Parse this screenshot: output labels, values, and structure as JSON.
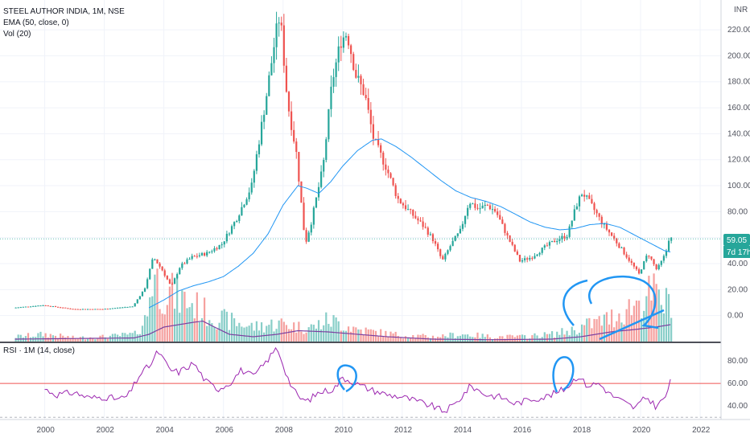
{
  "legend": {
    "symbol": "STEEL AUTHOR INDIA, 1M, NSE",
    "ema": "EMA (50, close, 0)",
    "vol": "Vol (20)",
    "rsi": "RSI · 1M (14, close)"
  },
  "price_axis": {
    "currency": "INR",
    "ticks": [
      "220.00",
      "200.00",
      "180.00",
      "160.00",
      "140.00",
      "120.00",
      "100.00",
      "80.00",
      "60.00",
      "40.00",
      "20.00",
      "0.00"
    ],
    "last_price": "59.05",
    "countdown": "7d 17h"
  },
  "rsi_axis": {
    "ticks": [
      "80.00",
      "60.00",
      "40.00"
    ]
  },
  "time_axis": {
    "ticks": [
      "2000",
      "2002",
      "2004",
      "2006",
      "2008",
      "2010",
      "2012",
      "2014",
      "2016",
      "2018",
      "2020",
      "2022"
    ]
  },
  "colors": {
    "up": "#26a69a",
    "down": "#ef5350",
    "ema": "#2196f3",
    "vol_ma": "#7b3fa0",
    "rsi": "#9c27b0",
    "rsi_level": "#ef5350",
    "drawing": "#2196f3",
    "last_price_bg": "#26a69a"
  },
  "chart_data": {
    "type": "candlestick",
    "title": "STEEL AUTHOR INDIA, 1M, NSE",
    "ylim": [
      -20,
      238
    ],
    "xlim": [
      1998.5,
      2022.7
    ],
    "price_anchors": [
      [
        1999.0,
        6
      ],
      [
        2000.0,
        8
      ],
      [
        2001.0,
        5
      ],
      [
        2002.0,
        5
      ],
      [
        2003.0,
        7
      ],
      [
        2003.4,
        20
      ],
      [
        2003.7,
        45
      ],
      [
        2004.0,
        35
      ],
      [
        2004.3,
        22
      ],
      [
        2004.6,
        38
      ],
      [
        2005.0,
        45
      ],
      [
        2005.5,
        48
      ],
      [
        2006.0,
        55
      ],
      [
        2006.5,
        75
      ],
      [
        2007.0,
        100
      ],
      [
        2007.5,
        170
      ],
      [
        2007.8,
        215
      ],
      [
        2007.95,
        232
      ],
      [
        2008.2,
        165
      ],
      [
        2008.5,
        125
      ],
      [
        2008.8,
        55
      ],
      [
        2009.0,
        72
      ],
      [
        2009.4,
        115
      ],
      [
        2009.7,
        180
      ],
      [
        2010.0,
        212
      ],
      [
        2010.2,
        218
      ],
      [
        2010.5,
        185
      ],
      [
        2010.8,
        170
      ],
      [
        2011.1,
        135
      ],
      [
        2011.5,
        115
      ],
      [
        2011.9,
        90
      ],
      [
        2012.3,
        80
      ],
      [
        2012.8,
        68
      ],
      [
        2013.1,
        58
      ],
      [
        2013.4,
        42
      ],
      [
        2013.7,
        55
      ],
      [
        2014.0,
        65
      ],
      [
        2014.3,
        88
      ],
      [
        2014.6,
        82
      ],
      [
        2014.9,
        85
      ],
      [
        2015.2,
        80
      ],
      [
        2015.6,
        60
      ],
      [
        2016.0,
        42
      ],
      [
        2016.4,
        45
      ],
      [
        2016.8,
        52
      ],
      [
        2017.2,
        58
      ],
      [
        2017.6,
        62
      ],
      [
        2017.9,
        85
      ],
      [
        2018.1,
        95
      ],
      [
        2018.4,
        85
      ],
      [
        2018.8,
        70
      ],
      [
        2019.2,
        58
      ],
      [
        2019.6,
        45
      ],
      [
        2020.0,
        32
      ],
      [
        2020.3,
        48
      ],
      [
        2020.6,
        35
      ],
      [
        2020.9,
        48
      ],
      [
        2021.0,
        59.05
      ]
    ],
    "ema50_anchors": [
      [
        2003.5,
        6
      ],
      [
        2004.0,
        12
      ],
      [
        2004.5,
        19
      ],
      [
        2005.0,
        23
      ],
      [
        2005.5,
        26
      ],
      [
        2006.0,
        30
      ],
      [
        2006.5,
        38
      ],
      [
        2007.0,
        48
      ],
      [
        2007.5,
        63
      ],
      [
        2008.0,
        85
      ],
      [
        2008.5,
        100
      ],
      [
        2008.8,
        98
      ],
      [
        2009.2,
        94
      ],
      [
        2009.6,
        103
      ],
      [
        2010.0,
        115
      ],
      [
        2010.5,
        127
      ],
      [
        2011.0,
        135
      ],
      [
        2011.3,
        136
      ],
      [
        2011.8,
        130
      ],
      [
        2012.3,
        122
      ],
      [
        2012.8,
        113
      ],
      [
        2013.3,
        104
      ],
      [
        2013.8,
        96
      ],
      [
        2014.3,
        91
      ],
      [
        2014.8,
        88
      ],
      [
        2015.3,
        84
      ],
      [
        2015.8,
        78
      ],
      [
        2016.3,
        72
      ],
      [
        2016.8,
        68
      ],
      [
        2017.3,
        66
      ],
      [
        2017.8,
        67
      ],
      [
        2018.3,
        70
      ],
      [
        2018.8,
        71
      ],
      [
        2019.3,
        68
      ],
      [
        2019.8,
        62
      ],
      [
        2020.3,
        56
      ],
      [
        2020.8,
        50
      ],
      [
        2021.0,
        49
      ]
    ],
    "volume_anchors": [
      [
        1999.0,
        4
      ],
      [
        2000.0,
        6
      ],
      [
        2001.0,
        3
      ],
      [
        2002.0,
        4
      ],
      [
        2003.0,
        6
      ],
      [
        2003.4,
        20
      ],
      [
        2003.6,
        60
      ],
      [
        2003.8,
        45
      ],
      [
        2004.2,
        40
      ],
      [
        2004.6,
        35
      ],
      [
        2005.0,
        30
      ],
      [
        2005.5,
        22
      ],
      [
        2006.0,
        18
      ],
      [
        2006.5,
        15
      ],
      [
        2007.0,
        12
      ],
      [
        2007.5,
        14
      ],
      [
        2008.0,
        15
      ],
      [
        2008.5,
        12
      ],
      [
        2009.0,
        12
      ],
      [
        2009.5,
        18
      ],
      [
        2010.0,
        14
      ],
      [
        2010.5,
        10
      ],
      [
        2011.0,
        8
      ],
      [
        2012.0,
        5
      ],
      [
        2013.0,
        4
      ],
      [
        2014.0,
        6
      ],
      [
        2015.0,
        4
      ],
      [
        2016.0,
        4
      ],
      [
        2017.0,
        6
      ],
      [
        2017.8,
        10
      ],
      [
        2018.2,
        14
      ],
      [
        2018.8,
        18
      ],
      [
        2019.2,
        22
      ],
      [
        2019.6,
        28
      ],
      [
        2020.0,
        35
      ],
      [
        2020.4,
        40
      ],
      [
        2020.8,
        30
      ],
      [
        2021.0,
        38
      ]
    ],
    "vol_ma_anchors": [
      [
        1999.0,
        2
      ],
      [
        2003.0,
        3
      ],
      [
        2003.5,
        6
      ],
      [
        2004.0,
        12
      ],
      [
        2004.5,
        14
      ],
      [
        2005.0,
        16
      ],
      [
        2005.3,
        17
      ],
      [
        2005.7,
        12
      ],
      [
        2006.2,
        6
      ],
      [
        2007.0,
        4
      ],
      [
        2007.8,
        6
      ],
      [
        2008.5,
        9
      ],
      [
        2009.5,
        8
      ],
      [
        2010.5,
        6
      ],
      [
        2011.5,
        4
      ],
      [
        2013.0,
        2
      ],
      [
        2015.0,
        1.5
      ],
      [
        2017.0,
        2
      ],
      [
        2018.0,
        4
      ],
      [
        2019.0,
        8
      ],
      [
        2019.8,
        10
      ],
      [
        2020.5,
        12
      ],
      [
        2021.0,
        14
      ]
    ],
    "rsi": {
      "ylim": [
        28,
        95
      ],
      "level": 60,
      "dashed_level": 30,
      "anchors": [
        [
          2000.0,
          55
        ],
        [
          2000.4,
          50
        ],
        [
          2001.0,
          52
        ],
        [
          2001.5,
          47
        ],
        [
          2002.0,
          48
        ],
        [
          2002.5,
          46
        ],
        [
          2002.8,
          49
        ],
        [
          2003.2,
          68
        ],
        [
          2003.6,
          78
        ],
        [
          2003.8,
          89
        ],
        [
          2004.2,
          72
        ],
        [
          2004.5,
          70
        ],
        [
          2005.0,
          78
        ],
        [
          2005.4,
          62
        ],
        [
          2005.8,
          55
        ],
        [
          2006.2,
          60
        ],
        [
          2006.6,
          72
        ],
        [
          2007.0,
          66
        ],
        [
          2007.4,
          78
        ],
        [
          2007.8,
          92
        ],
        [
          2008.2,
          62
        ],
        [
          2008.5,
          48
        ],
        [
          2008.8,
          44
        ],
        [
          2009.2,
          52
        ],
        [
          2009.7,
          55
        ],
        [
          2010.0,
          65
        ],
        [
          2010.3,
          62
        ],
        [
          2010.6,
          58
        ],
        [
          2011.0,
          54
        ],
        [
          2011.5,
          50
        ],
        [
          2012.0,
          48
        ],
        [
          2012.5,
          44
        ],
        [
          2013.0,
          40
        ],
        [
          2013.4,
          35
        ],
        [
          2013.8,
          42
        ],
        [
          2014.3,
          58
        ],
        [
          2014.8,
          50
        ],
        [
          2015.3,
          48
        ],
        [
          2015.8,
          42
        ],
        [
          2016.3,
          46
        ],
        [
          2016.8,
          48
        ],
        [
          2017.2,
          52
        ],
        [
          2017.5,
          56
        ],
        [
          2017.9,
          67
        ],
        [
          2018.2,
          58
        ],
        [
          2018.6,
          60
        ],
        [
          2019.0,
          50
        ],
        [
          2019.4,
          44
        ],
        [
          2019.8,
          38
        ],
        [
          2020.2,
          48
        ],
        [
          2020.5,
          40
        ],
        [
          2020.8,
          46
        ],
        [
          2021.0,
          61
        ]
      ]
    }
  }
}
